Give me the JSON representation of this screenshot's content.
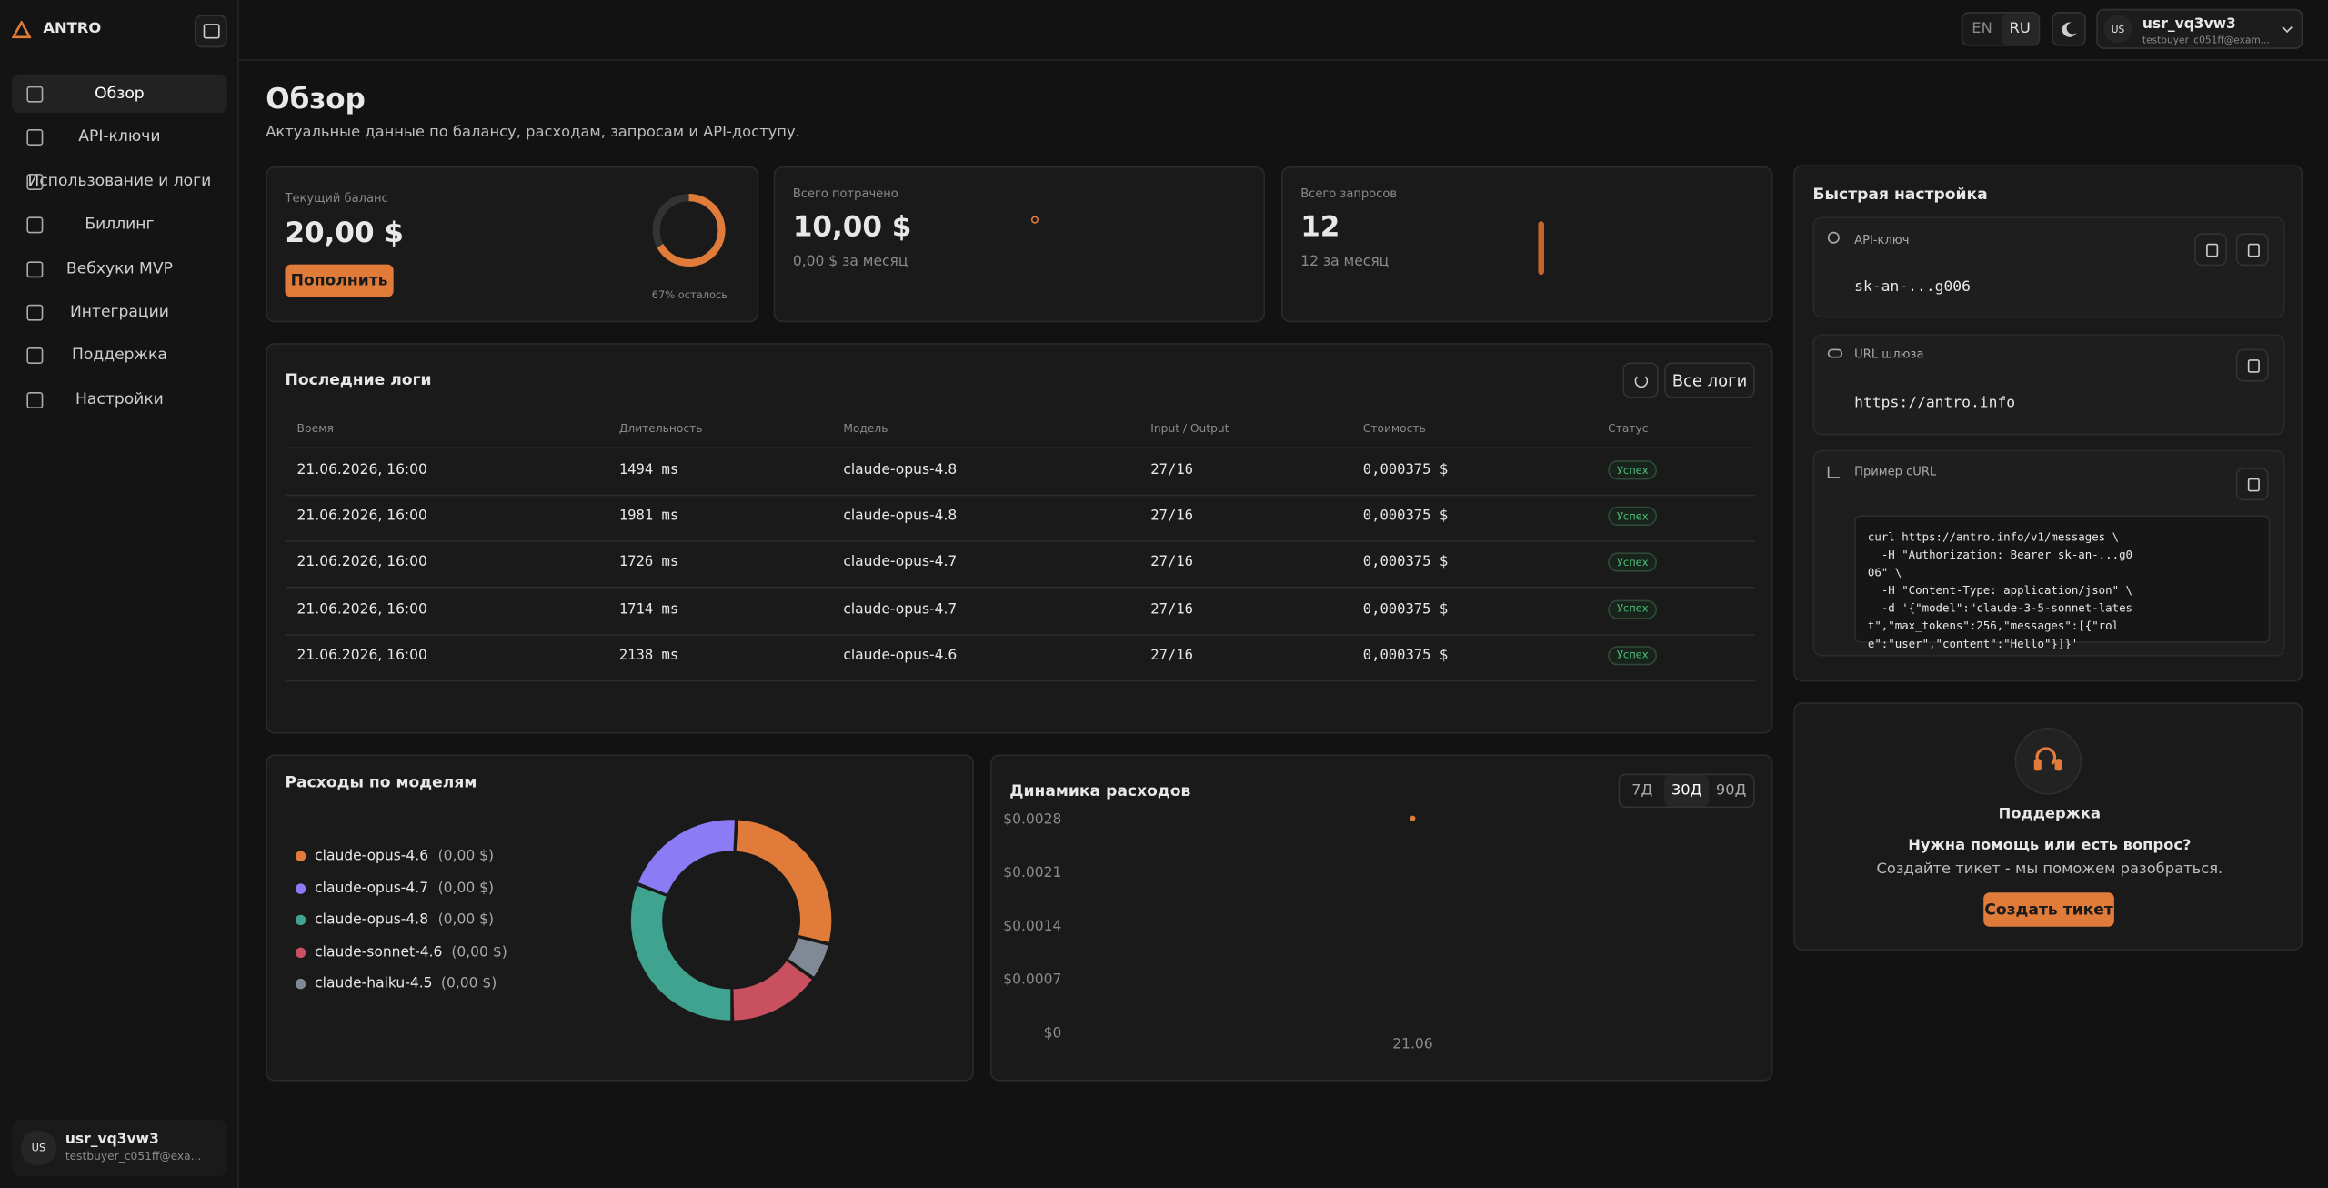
{
  "sidebar": {
    "brand": "ANTRO",
    "nav": [
      "Обзор",
      "API-ключи",
      "Использование и логи",
      "Биллинг",
      "Вебхуки MVP",
      "Интеграции",
      "Поддержка",
      "Настройки"
    ],
    "user": {
      "avatar": "US",
      "name": "usr_vq3vw3",
      "email": "testbuyer_c051ff@exa..."
    }
  },
  "topbar": {
    "languages": [
      "EN",
      "RU"
    ],
    "user": {
      "avatar": "US",
      "name": "usr_vq3vw3",
      "email": "testbuyer_c051ff@exam..."
    }
  },
  "header": {
    "title": "Обзор",
    "subtitle": "Актуальные данные по балансу, расходам, запросам и API-доступу."
  },
  "stats": [
    {
      "label": "Текущий баланс",
      "value": "20,00 $",
      "button": "Пополнить",
      "gauge_percent": 67,
      "gauge_label": "67% осталось"
    },
    {
      "label": "Всего потрачено",
      "value": "10,00 $",
      "note": "0,00 $ за месяц"
    },
    {
      "label": "Всего запросов",
      "value": "12",
      "note": "12 за месяц"
    }
  ],
  "logs": {
    "title": "Последние логи",
    "button": "Все логи",
    "columns": [
      "Время",
      "Длительность",
      "Модель",
      "Input / Output",
      "Стоимость",
      "Статус"
    ],
    "rows": [
      [
        "21.06.2026, 16:00",
        "1494 ms",
        "claude-opus-4.8",
        "27/16",
        "0,000375 $",
        "Успех"
      ],
      [
        "21.06.2026, 16:00",
        "1981 ms",
        "claude-opus-4.8",
        "27/16",
        "0,000375 $",
        "Успех"
      ],
      [
        "21.06.2026, 16:00",
        "1726 ms",
        "claude-opus-4.7",
        "27/16",
        "0,000375 $",
        "Успех"
      ],
      [
        "21.06.2026, 16:00",
        "1714 ms",
        "claude-opus-4.7",
        "27/16",
        "0,000375 $",
        "Успех"
      ],
      [
        "21.06.2026, 16:00",
        "2138 ms",
        "claude-opus-4.6",
        "27/16",
        "0,000375 $",
        "Успех"
      ]
    ]
  },
  "models": {
    "title": "Расходы по моделям",
    "items": [
      {
        "name": "claude-opus-4.6",
        "amount": "(0,00 $)",
        "color": "#e07b39",
        "share": 28
      },
      {
        "name": "claude-opus-4.7",
        "amount": "(0,00 $)",
        "color": "#8b7cf6",
        "share": 20
      },
      {
        "name": "claude-opus-4.8",
        "amount": "(0,00 $)",
        "color": "#3fa38f",
        "share": 31
      },
      {
        "name": "claude-sonnet-4.6",
        "amount": "(0,00 $)",
        "color": "#c9505f",
        "share": 15
      },
      {
        "name": "claude-haiku-4.5",
        "amount": "(0,00 $)",
        "color": "#7f8a96",
        "share": 6
      }
    ]
  },
  "chart": {
    "type": "line",
    "title": "Динамика расходов",
    "periods": [
      "7Д",
      "30Д",
      "90Д"
    ],
    "categories": [
      "21.06"
    ],
    "values": [
      0.0028
    ],
    "color": "#e07b39",
    "ylim": [
      0,
      0.0028
    ],
    "yticks": [
      {
        "value": 0.0028,
        "label": "$0.0028"
      },
      {
        "value": 0.0021,
        "label": "$0.0021"
      },
      {
        "value": 0.0014,
        "label": "$0.0014"
      },
      {
        "value": 0.0007,
        "label": "$0.0007"
      },
      {
        "value": 0,
        "label": "$0"
      }
    ]
  },
  "quick_setup": {
    "title": "Быстрая настройка",
    "api_key": {
      "label": "API-ключ",
      "value": "sk-an-...g006"
    },
    "gateway": {
      "label": "URL шлюза",
      "value": "https://antro.info"
    },
    "curl": {
      "label": "Пример cURL",
      "code": "curl https://antro.info/v1/messages \\\n  -H \"Authorization: Bearer sk-an-...g006\" \\\n  -H \"Content-Type: application/json\" \\\n  -d '{\"model\":\"claude-3-5-sonnet-latest\",\"max_tokens\":256,\"messages\":[{\"role\":\"user\",\"content\":\"Hello\"}]}'"
    }
  },
  "support": {
    "title": "Поддержка",
    "question": "Нужна помощь или есть вопрос?",
    "text": "Создайте тикет - мы поможем разобраться.",
    "button": "Создать тикет"
  }
}
